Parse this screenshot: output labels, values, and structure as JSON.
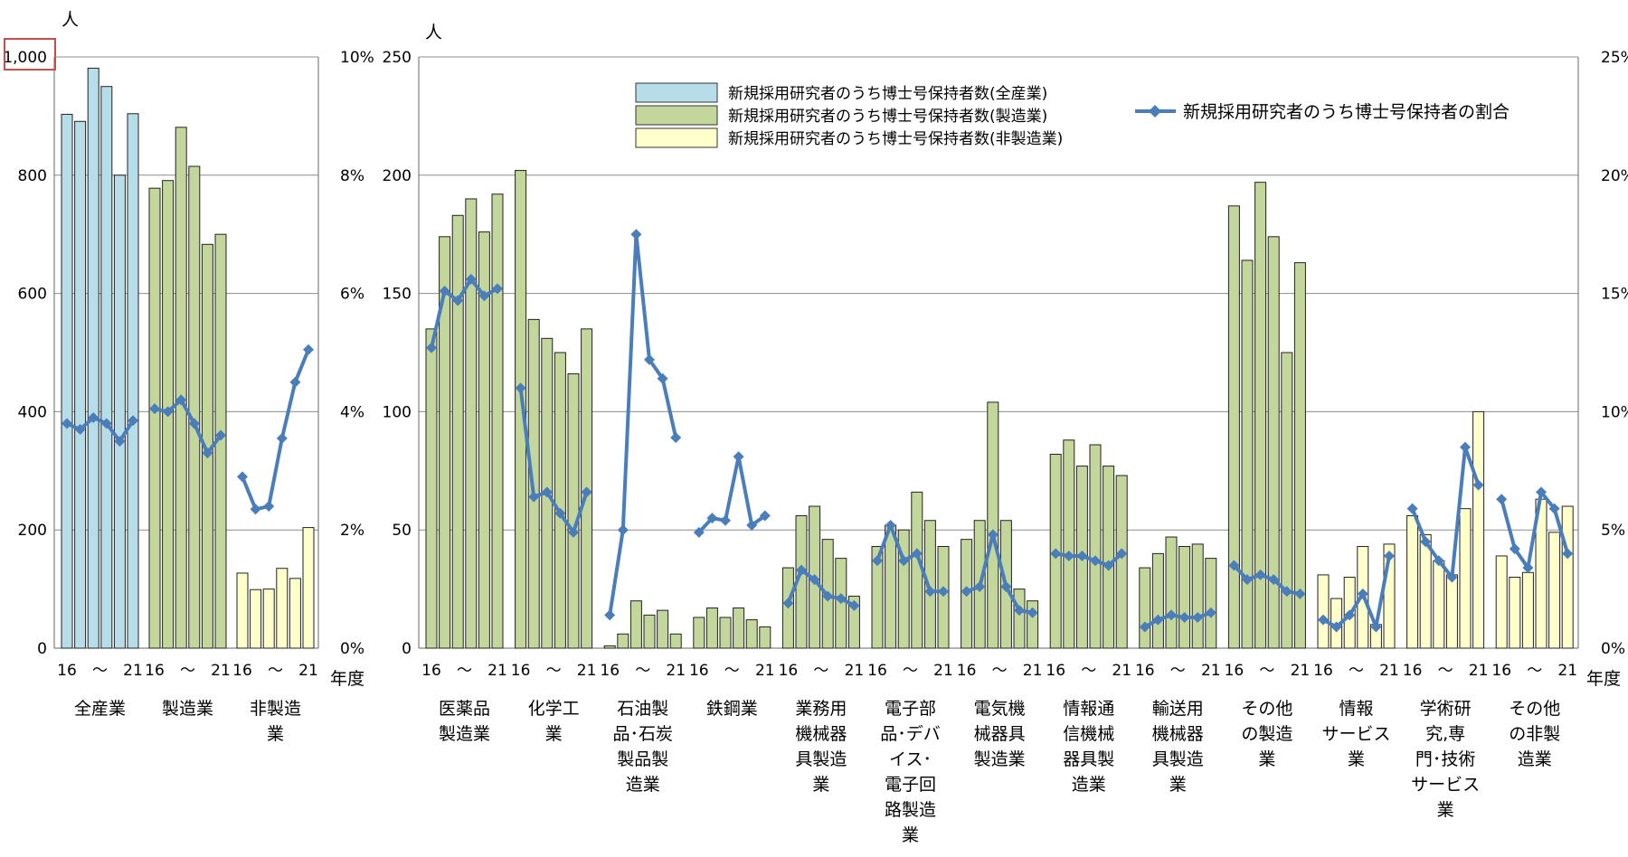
{
  "chart_data": [
    {
      "type": "bar+line",
      "unit_left": "人",
      "unit_x": "年度",
      "ylim": [
        0,
        1000
      ],
      "y2lim": [
        0,
        10
      ],
      "y_ticks": [
        "0",
        "200",
        "400",
        "600",
        "800",
        "1,000"
      ],
      "y2_ticks": [
        "0%",
        "2%",
        "4%",
        "6%",
        "8%",
        "10%"
      ],
      "x_ticks": [
        "16",
        "～",
        "21"
      ],
      "groups": [
        {
          "name": "全産業",
          "label_lines": [
            "全産業"
          ],
          "fill": "#B7DDE8",
          "values": [
            903,
            891,
            981,
            950,
            800,
            904
          ],
          "ratio": [
            3.8,
            3.7,
            3.9,
            3.8,
            3.5,
            3.85
          ]
        },
        {
          "name": "製造業",
          "label_lines": [
            "製造業"
          ],
          "fill": "#C3D69B",
          "values": [
            778,
            791,
            881,
            815,
            683,
            700
          ],
          "ratio": [
            4.05,
            4.0,
            4.2,
            3.8,
            3.3,
            3.6
          ]
        },
        {
          "name": "非製造業",
          "label_lines": [
            "非製造",
            "業"
          ],
          "fill": "#FFFFCC",
          "values": [
            127,
            99,
            100,
            135,
            118,
            204
          ],
          "ratio": [
            2.9,
            2.35,
            2.4,
            3.55,
            4.5,
            5.05
          ]
        }
      ]
    },
    {
      "type": "bar+line",
      "unit_left": "人",
      "unit_x": "年度",
      "ylim": [
        0,
        250
      ],
      "y2lim": [
        0,
        25
      ],
      "y_ticks": [
        "0",
        "50",
        "100",
        "150",
        "200",
        "250"
      ],
      "y2_ticks": [
        "0%",
        "5%",
        "10%",
        "15%",
        "20%",
        "25%"
      ],
      "x_ticks": [
        "16",
        "～",
        "21"
      ],
      "legend": {
        "bar_series": [
          {
            "name": "新規採用研究者のうち博士号保持者数(全産業)",
            "fill": "#B7DDE8"
          },
          {
            "name": "新規採用研究者のうち博士号保持者数(製造業)",
            "fill": "#C3D69B"
          },
          {
            "name": "新規採用研究者のうち博士号保持者数(非製造業)",
            "fill": "#FFFFCC"
          }
        ],
        "line_series": {
          "name": "新規採用研究者のうち博士号保持者の割合",
          "color": "#4A7EBB"
        }
      },
      "groups": [
        {
          "name": "医薬品製造業",
          "label_lines": [
            "医薬品",
            "製造業"
          ],
          "fill": "#C3D69B",
          "values": [
            135,
            174,
            183,
            190,
            176,
            192
          ],
          "ratio": [
            12.7,
            15.1,
            14.7,
            15.6,
            14.9,
            15.2
          ]
        },
        {
          "name": "化学工業",
          "label_lines": [
            "化学工",
            "業"
          ],
          "fill": "#C3D69B",
          "values": [
            202,
            139,
            131,
            125,
            116,
            135
          ],
          "ratio": [
            11.0,
            6.4,
            6.6,
            5.7,
            4.9,
            6.6
          ]
        },
        {
          "name": "石油製品・石炭製品製造業",
          "label_lines": [
            "石油製",
            "品･石炭",
            "製品製",
            "造業"
          ],
          "fill": "#C3D69B",
          "values": [
            1,
            6,
            20,
            14,
            16,
            6
          ],
          "ratio": [
            1.4,
            5.0,
            17.5,
            12.2,
            11.4,
            8.9
          ]
        },
        {
          "name": "鉄鋼業",
          "label_lines": [
            "鉄鋼業"
          ],
          "fill": "#C3D69B",
          "values": [
            13,
            17,
            13,
            17,
            12,
            9
          ],
          "ratio": [
            4.9,
            5.5,
            5.4,
            8.1,
            5.2,
            5.6
          ]
        },
        {
          "name": "業務用機械器具製造業",
          "label_lines": [
            "業務用",
            "機械器",
            "具製造",
            "業"
          ],
          "fill": "#C3D69B",
          "values": [
            34,
            56,
            60,
            46,
            38,
            22
          ],
          "ratio": [
            1.9,
            3.3,
            2.9,
            2.2,
            2.1,
            1.8
          ]
        },
        {
          "name": "電子部品・デバイス・電子回路製造業",
          "label_lines": [
            "電子部",
            "品･デバ",
            "イス･",
            "電子回",
            "路製造",
            "業"
          ],
          "fill": "#C3D69B",
          "values": [
            43,
            52,
            50,
            66,
            54,
            43
          ],
          "ratio": [
            3.7,
            5.2,
            3.7,
            4.0,
            2.4,
            2.4
          ]
        },
        {
          "name": "電気機械器具製造業",
          "label_lines": [
            "電気機",
            "械器具",
            "製造業"
          ],
          "fill": "#C3D69B",
          "values": [
            46,
            54,
            104,
            54,
            25,
            20
          ],
          "ratio": [
            2.4,
            2.6,
            4.8,
            2.6,
            1.6,
            1.5
          ]
        },
        {
          "name": "情報通信機械器具製造業",
          "label_lines": [
            "情報通",
            "信機械",
            "器具製",
            "造業"
          ],
          "fill": "#C3D69B",
          "values": [
            82,
            88,
            77,
            86,
            77,
            73
          ],
          "ratio": [
            4.0,
            3.9,
            3.9,
            3.7,
            3.5,
            4.0
          ]
        },
        {
          "name": "輸送用機械器具製造業",
          "label_lines": [
            "輸送用",
            "機械器",
            "具製造",
            "業"
          ],
          "fill": "#C3D69B",
          "values": [
            34,
            40,
            47,
            43,
            44,
            38
          ],
          "ratio": [
            0.9,
            1.2,
            1.4,
            1.3,
            1.3,
            1.5
          ]
        },
        {
          "name": "その他の製造業",
          "label_lines": [
            "その他",
            "の製造",
            "業"
          ],
          "fill": "#C3D69B",
          "values": [
            187,
            164,
            197,
            174,
            125,
            163
          ],
          "ratio": [
            3.5,
            2.9,
            3.1,
            2.9,
            2.4,
            2.3
          ]
        },
        {
          "name": "情報サービス業",
          "label_lines": [
            "情報",
            "サービス",
            "業"
          ],
          "fill": "#FFFFCC",
          "values": [
            31,
            21,
            30,
            43,
            10,
            44
          ],
          "ratio": [
            1.2,
            0.9,
            1.4,
            2.3,
            0.9,
            3.9
          ]
        },
        {
          "name": "学術研究,専門・技術サービス業",
          "label_lines": [
            "学術研",
            "究,専",
            "門･技術",
            "サービス",
            "業"
          ],
          "fill": "#FFFFCC",
          "values": [
            56,
            48,
            37,
            31,
            59,
            100
          ],
          "ratio": [
            5.9,
            4.5,
            3.7,
            3.0,
            8.5,
            6.9
          ]
        },
        {
          "name": "その他の非製造業",
          "label_lines": [
            "その他",
            "の非製",
            "造業"
          ],
          "fill": "#FFFFCC",
          "values": [
            39,
            30,
            32,
            63,
            49,
            60
          ],
          "ratio": [
            6.3,
            4.2,
            3.4,
            6.6,
            5.9,
            4.0
          ]
        }
      ]
    }
  ]
}
